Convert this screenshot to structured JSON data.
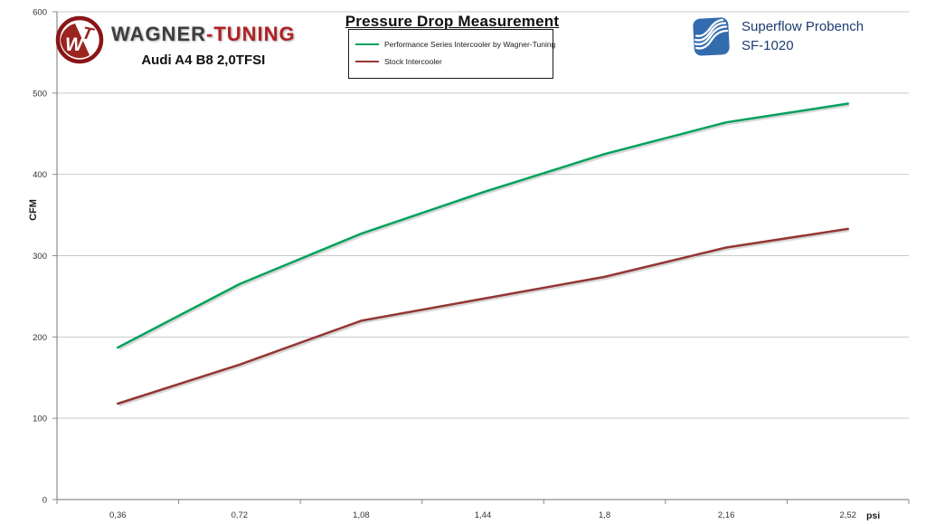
{
  "header": {
    "brand": {
      "name_primary": "WAGNER",
      "name_secondary": "-TUNING",
      "subtitle": "Audi A4 B8 2,0TFSI"
    },
    "title": "Pressure Drop Measurement",
    "bench": {
      "line1": "Superflow Probench",
      "line2": "SF-1020"
    }
  },
  "chart_data": {
    "type": "line",
    "x": [
      0.36,
      0.72,
      1.08,
      1.44,
      1.8,
      2.16,
      2.52
    ],
    "categories": [
      "0,36",
      "0,72",
      "1,08",
      "1,44",
      "1,8",
      "2,16",
      "2,52"
    ],
    "series": [
      {
        "name": "Performance Series Intercooler by Wagner-Tuning",
        "color": "#00a25c",
        "values": [
          187,
          265,
          327,
          378,
          425,
          464,
          487
        ]
      },
      {
        "name": "Stock Intercooler",
        "color": "#943634",
        "values": [
          118,
          166,
          220,
          247,
          274,
          310,
          333
        ]
      }
    ],
    "xlabel": "psi",
    "ylabel": "CFM",
    "ylim": [
      0,
      600
    ],
    "ytick_step": 100,
    "yticks": [
      0,
      100,
      200,
      300,
      400,
      500,
      600
    ],
    "grid": true,
    "legend_position": "top-center"
  },
  "colors": {
    "grid": "#c9c9c9",
    "axis": "#8c8c8c",
    "tick_text": "#333333",
    "wagner_dark": "#3d3d3d",
    "wagner_red": "#b12025",
    "bench_text": "#1c3c6e",
    "bench_blue": "#336cae",
    "logo_ring": "#8a1517",
    "logo_fill": "#9b2420"
  }
}
